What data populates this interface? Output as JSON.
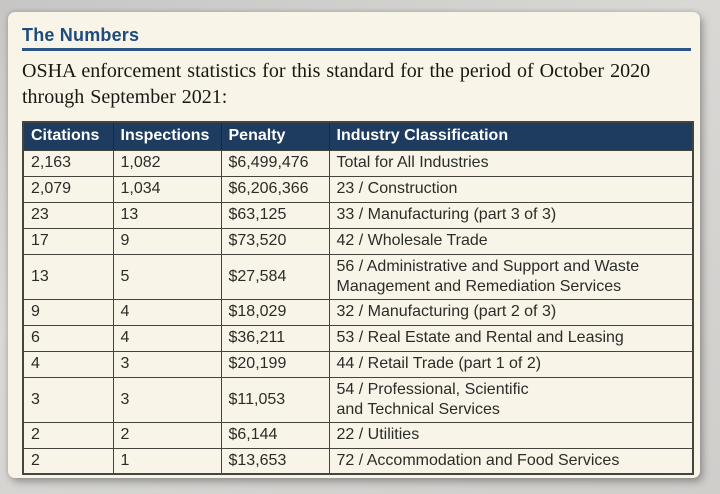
{
  "card": {
    "title": "The Numbers",
    "description": "OSHA enforcement statistics for this standard for the period of October 2020 through September 2021:"
  },
  "table": {
    "columns": [
      "Citations",
      "Inspections",
      "Penalty",
      "Industry Classification"
    ],
    "rows": [
      [
        "2,163",
        "1,082",
        "$6,499,476",
        "Total for All Industries"
      ],
      [
        "2,079",
        "1,034",
        "$6,206,366",
        "23 / Construction"
      ],
      [
        "23",
        "13",
        "$63,125",
        "33 / Manufacturing (part 3 of 3)"
      ],
      [
        "17",
        "9",
        "$73,520",
        "42 / Wholesale Trade"
      ],
      [
        "13",
        "5",
        "$27,584",
        "56 / Administrative and Support and Waste\nManagement and Remediation Services"
      ],
      [
        "9",
        "4",
        "$18,029",
        "32 / Manufacturing (part 2 of 3)"
      ],
      [
        "6",
        "4",
        "$36,211",
        "53 / Real Estate and Rental and Leasing"
      ],
      [
        "4",
        "3",
        "$20,199",
        "44 / Retail Trade (part 1 of 2)"
      ],
      [
        "3",
        "3",
        "$11,053",
        "54 / Professional, Scientific\nand Technical Services"
      ],
      [
        "2",
        "2",
        "$6,144",
        "22 / Utilities"
      ],
      [
        "2",
        "1",
        "$13,653",
        "72 / Accommodation and Food Services"
      ]
    ]
  },
  "colors": {
    "header_bg": "#1d3c60",
    "card_bg": "#f8f4e8",
    "title_blue": "#1c4b7c",
    "rule_blue": "#2a5586",
    "border_dark": "#45453f",
    "page_bg": "#d2d1ce"
  }
}
